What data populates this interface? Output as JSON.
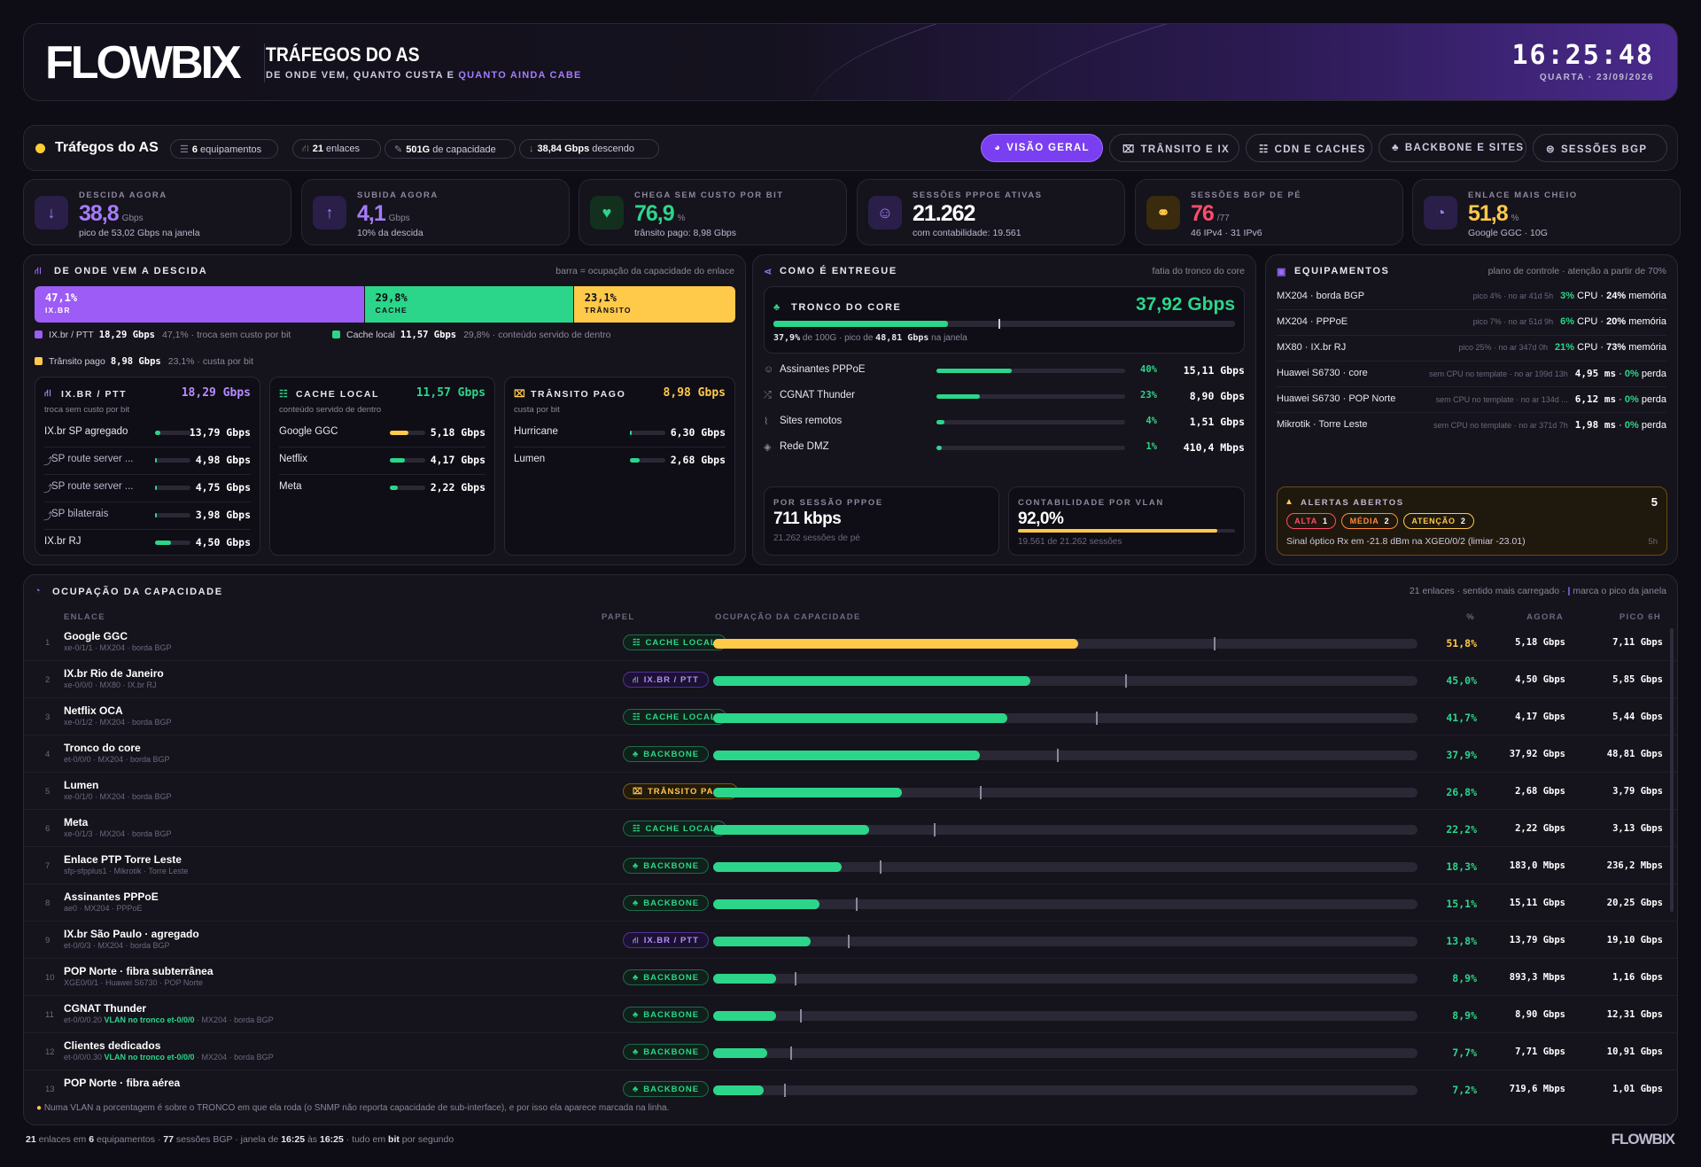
{
  "header": {
    "logo": "FLOWBIX",
    "title": "TRÁFEGOS DO AS",
    "subtitle_a": "DE ONDE VEM, QUANTO CUSTA E ",
    "subtitle_b": "QUANTO AINDA CABE",
    "time": "16:25:48",
    "date": "QUARTA · 23/09/2026"
  },
  "nav": {
    "title": "Tráfegos do AS",
    "chips": [
      {
        "n": "6",
        "t": " equipamentos",
        "icon": "list-icon"
      },
      {
        "n": "21",
        "t": " enlaces",
        "icon": "network-icon"
      },
      {
        "n": "501G",
        "t": " de capacidade",
        "icon": "gauge-icon"
      },
      {
        "n": "38,84 Gbps",
        "t": " descendo",
        "icon": "arrow-down-icon"
      }
    ],
    "tabs": [
      "VISÃO GERAL",
      "TRÂNSITO E IX",
      "CDN E CACHES",
      "BACKBONE E SITES",
      "SESSÕES BGP"
    ]
  },
  "kpis": [
    {
      "label": "DESCIDA AGORA",
      "value": "38,8",
      "unit": "Gbps",
      "sub": "pico de 53,02 Gbps na janela",
      "icon": "arrow-down-icon",
      "color": "#a57bff"
    },
    {
      "label": "SUBIDA AGORA",
      "value": "4,1",
      "unit": "Gbps",
      "sub": "10% da descida",
      "icon": "arrow-up-icon",
      "color": "#a57bff"
    },
    {
      "label": "CHEGA SEM CUSTO POR BIT",
      "value": "76,9",
      "unit": "%",
      "sub": "trânsito pago: 8,98 Gbps",
      "icon": "piggy-icon",
      "color": "#2bd68a"
    },
    {
      "label": "SESSÕES PPPOE ATIVAS",
      "value": "21.262",
      "unit": "",
      "sub": "com contabilidade: 19.561",
      "icon": "users-icon",
      "color": "#ffffff"
    },
    {
      "label": "SESSÕES BGP DE PÉ",
      "value": "76",
      "unit": "/77",
      "sub": "46 IPv4 · 31 IPv6",
      "icon": "handshake-icon",
      "color": "#ff4d6d"
    },
    {
      "label": "ENLACE MAIS CHEIO",
      "value": "51,8",
      "unit": "%",
      "sub": "Google GGC · 10G",
      "icon": "gauge-icon",
      "color": "#ffc94a"
    }
  ],
  "origem": {
    "title": "DE ONDE VEM A DESCIDA",
    "note": "barra = ocupação da capacidade do enlace",
    "split": [
      {
        "pct": "47,1%",
        "name": "IX.BR",
        "frac": 0.471,
        "color": "#9d5cf5"
      },
      {
        "pct": "29,8%",
        "name": "CACHE",
        "frac": 0.298,
        "color": "#2bd68a"
      },
      {
        "pct": "23,1%",
        "name": "TRÂNSITO",
        "frac": 0.231,
        "color": "#ffc94a"
      }
    ],
    "legend": [
      {
        "name": "IX.br / PTT",
        "val": "18,29 Gbps",
        "pct": "47,1%",
        "desc": "troca sem custo por bit",
        "color": "#9d5cf5"
      },
      {
        "name": "Cache local",
        "val": "11,57 Gbps",
        "pct": "29,8%",
        "desc": "conteúdo servido de dentro",
        "color": "#2bd68a"
      },
      {
        "name": "Trânsito pago",
        "val": "8,98 Gbps",
        "pct": "23,1%",
        "desc": "custa por bit",
        "color": "#ffc94a"
      }
    ],
    "cols": [
      {
        "title": "IX.BR / PTT",
        "total": "18,29 Gbps",
        "desc": "troca sem custo por bit",
        "color": "#b58cff",
        "icon": "network-icon",
        "rows": [
          {
            "n": "IX.br SP agregado",
            "v": "13,79 Gbps",
            "f": 0.14,
            "sub": false
          },
          {
            "n": "SP route server ...",
            "v": "4,98 Gbps",
            "f": 0.02,
            "sub": true
          },
          {
            "n": "SP route server ...",
            "v": "4,75 Gbps",
            "f": 0.02,
            "sub": true
          },
          {
            "n": "SP bilaterais",
            "v": "3,98 Gbps",
            "f": 0.02,
            "sub": true
          },
          {
            "n": "IX.br RJ",
            "v": "4,50 Gbps",
            "f": 0.45,
            "sub": false
          }
        ]
      },
      {
        "title": "CACHE LOCAL",
        "total": "11,57 Gbps",
        "desc": "conteúdo servido de dentro",
        "color": "#2bd68a",
        "icon": "cache-icon",
        "rows": [
          {
            "n": "Google GGC",
            "v": "5,18 Gbps",
            "f": 0.52,
            "sub": false,
            "c": "#ffc94a"
          },
          {
            "n": "Netflix",
            "v": "4,17 Gbps",
            "f": 0.42,
            "sub": false
          },
          {
            "n": "Meta",
            "v": "2,22 Gbps",
            "f": 0.22,
            "sub": false
          }
        ]
      },
      {
        "title": "TRÂNSITO PAGO",
        "total": "8,98 Gbps",
        "desc": "custa por bit",
        "color": "#ffc94a",
        "icon": "ticket-icon",
        "rows": [
          {
            "n": "Hurricane",
            "v": "6,30 Gbps",
            "f": 0.03,
            "sub": false
          },
          {
            "n": "Lumen",
            "v": "2,68 Gbps",
            "f": 0.27,
            "sub": false
          }
        ]
      }
    ]
  },
  "entrega": {
    "title": "COMO É ENTREGUE",
    "note": "fatia do tronco do core",
    "tronco_label": "TRONCO DO CORE",
    "tronco_val": "37,92 Gbps",
    "tronco_frac": 0.379,
    "tronco_peak": 0.488,
    "tronco_sub_a": "37,9%",
    "tronco_sub_b": " de 100G · pico de ",
    "tronco_sub_c": "48,81 Gbps",
    "tronco_sub_d": " na janela",
    "rows": [
      {
        "n": "Assinantes PPPoE",
        "p": "40%",
        "v": "15,11 Gbps",
        "f": 0.4,
        "icon": "users-icon"
      },
      {
        "n": "CGNAT Thunder",
        "p": "23%",
        "v": "8,90 Gbps",
        "f": 0.23,
        "icon": "shuffle-icon"
      },
      {
        "n": "Sites remotos",
        "p": "4%",
        "v": "1,51 Gbps",
        "f": 0.04,
        "icon": "signal-icon"
      },
      {
        "n": "Rede DMZ",
        "p": "1%",
        "v": "410,4 Mbps",
        "f": 0.01,
        "icon": "shield-icon"
      }
    ],
    "c1_label": "POR SESSÃO PPPOE",
    "c1_val": "711 kbps",
    "c1_sub": "21.262 sessões de pé",
    "c2_label": "CONTABILIDADE POR VLAN",
    "c2_val": "92,0%",
    "c2_sub": "19.561 de 21.262 sessões",
    "c2_frac": 0.92
  },
  "equip": {
    "title": "EQUIPAMENTOS",
    "note": "plano de controle · atenção a partir de 70%",
    "rows": [
      {
        "n": "MX204 · borda BGP",
        "info": "pico 4% · no ar 41d 5h",
        "a": "3%",
        "ak": " CPU · ",
        "b": "24%",
        "bk": " memória"
      },
      {
        "n": "MX204 · PPPoE",
        "info": "pico 7% · no ar 51d 9h",
        "a": "6%",
        "ak": " CPU · ",
        "b": "20%",
        "bk": " memória"
      },
      {
        "n": "MX80 · IX.br RJ",
        "info": "pico 25% · no ar 347d 0h",
        "a": "21%",
        "ak": " CPU · ",
        "b": "73%",
        "bk": " memória"
      },
      {
        "n": "Huawei S6730 · core",
        "info": "sem CPU no template · no ar 199d 13h",
        "a": "4,95 ms",
        "ak": " · ",
        "b": "0%",
        "bk": " perda"
      },
      {
        "n": "Huawei S6730 · POP Norte",
        "info": "sem CPU no template · no ar 134d ...",
        "a": "6,12 ms",
        "ak": " · ",
        "b": "0%",
        "bk": " perda"
      },
      {
        "n": "Mikrotik · Torre Leste",
        "info": "sem CPU no template · no ar 371d 7h",
        "a": "1,98 ms",
        "ak": " · ",
        "b": "0%",
        "bk": " perda"
      }
    ],
    "alert_title": "ALERTAS ABERTOS",
    "alert_count": "5",
    "alert_tags": [
      {
        "t": "ALTA",
        "n": "1",
        "c": "#ff4d6d"
      },
      {
        "t": "MÉDIA",
        "n": "2",
        "c": "#ff8a3d"
      },
      {
        "t": "ATENÇÃO",
        "n": "2",
        "c": "#ffc94a"
      }
    ],
    "alert_msg": "Sinal óptico Rx em -21.8 dBm na XGE0/0/2 (limiar -23.01)",
    "alert_age": "5h"
  },
  "ocup": {
    "title": "OCUPAÇÃO DA CAPACIDADE",
    "note_a": "21 enlaces · sentido mais carregado · ",
    "note_b": "marca o pico da janela",
    "cols": [
      "ENLACE",
      "PAPEL",
      "OCUPAÇÃO DA CAPACIDADE",
      "%",
      "AGORA",
      "PICO 6H"
    ],
    "rows": [
      {
        "i": "1",
        "n": "Google GGC",
        "s": "xe-0/1/1 · MX204 · borda BGP",
        "r": "CACHE LOCAL",
        "rc": "b-cache",
        "p": "51,8%",
        "f": 0.518,
        "pk": 0.711,
        "a": "5,18 Gbps",
        "m": "7,11 Gbps",
        "c": "#ffc94a"
      },
      {
        "i": "2",
        "n": "IX.br Rio de Janeiro",
        "s": "xe-0/0/0 · MX80 · IX.br RJ",
        "r": "IX.BR / PTT",
        "rc": "b-ix",
        "p": "45,0%",
        "f": 0.45,
        "pk": 0.585,
        "a": "4,50 Gbps",
        "m": "5,85 Gbps",
        "c": "#2bd68a"
      },
      {
        "i": "3",
        "n": "Netflix OCA",
        "s": "xe-0/1/2 · MX204 · borda BGP",
        "r": "CACHE LOCAL",
        "rc": "b-cache",
        "p": "41,7%",
        "f": 0.417,
        "pk": 0.544,
        "a": "4,17 Gbps",
        "m": "5,44 Gbps",
        "c": "#2bd68a"
      },
      {
        "i": "4",
        "n": "Tronco do core",
        "s": "et-0/0/0 · MX204 · borda BGP",
        "r": "BACKBONE",
        "rc": "b-back",
        "p": "37,9%",
        "f": 0.379,
        "pk": 0.488,
        "a": "37,92 Gbps",
        "m": "48,81 Gbps",
        "c": "#2bd68a"
      },
      {
        "i": "5",
        "n": "Lumen",
        "s": "xe-0/1/0 · MX204 · borda BGP",
        "r": "TRÂNSITO PAGO",
        "rc": "b-tp",
        "p": "26,8%",
        "f": 0.268,
        "pk": 0.379,
        "a": "2,68 Gbps",
        "m": "3,79 Gbps",
        "c": "#2bd68a"
      },
      {
        "i": "6",
        "n": "Meta",
        "s": "xe-0/1/3 · MX204 · borda BGP",
        "r": "CACHE LOCAL",
        "rc": "b-cache",
        "p": "22,2%",
        "f": 0.222,
        "pk": 0.313,
        "a": "2,22 Gbps",
        "m": "3,13 Gbps",
        "c": "#2bd68a"
      },
      {
        "i": "7",
        "n": "Enlace PTP Torre Leste",
        "s": "sfp-sfpplus1 · Mikrotik · Torre Leste",
        "r": "BACKBONE",
        "rc": "b-back",
        "p": "18,3%",
        "f": 0.183,
        "pk": 0.236,
        "a": "183,0 Mbps",
        "m": "236,2 Mbps",
        "c": "#2bd68a"
      },
      {
        "i": "8",
        "n": "Assinantes PPPoE",
        "s": "ae0 · MX204 · PPPoE",
        "r": "BACKBONE",
        "rc": "b-back",
        "p": "15,1%",
        "f": 0.151,
        "pk": 0.203,
        "a": "15,11 Gbps",
        "m": "20,25 Gbps",
        "c": "#2bd68a"
      },
      {
        "i": "9",
        "n": "IX.br São Paulo · agregado",
        "s": "et-0/0/3 · MX204 · borda BGP",
        "r": "IX.BR / PTT",
        "rc": "b-ix",
        "p": "13,8%",
        "f": 0.138,
        "pk": 0.191,
        "a": "13,79 Gbps",
        "m": "19,10 Gbps",
        "c": "#2bd68a"
      },
      {
        "i": "10",
        "n": "POP Norte · fibra subterrânea",
        "s": "XGE0/0/1 · Huawei S6730 · POP Norte",
        "r": "BACKBONE",
        "rc": "b-back",
        "p": "8,9%",
        "f": 0.089,
        "pk": 0.116,
        "a": "893,3 Mbps",
        "m": "1,16 Gbps",
        "c": "#2bd68a"
      },
      {
        "i": "11",
        "n": "CGNAT Thunder",
        "s": "et-0/0/0.20 ",
        "sv": "VLAN no tronco et-0/0/0",
        "s2": " · MX204 · borda BGP",
        "r": "BACKBONE",
        "rc": "b-back",
        "p": "8,9%",
        "f": 0.089,
        "pk": 0.123,
        "a": "8,90 Gbps",
        "m": "12,31 Gbps",
        "c": "#2bd68a"
      },
      {
        "i": "12",
        "n": "Clientes dedicados",
        "s": "et-0/0/0.30 ",
        "sv": "VLAN no tronco et-0/0/0",
        "s2": " · MX204 · borda BGP",
        "r": "BACKBONE",
        "rc": "b-back",
        "p": "7,7%",
        "f": 0.077,
        "pk": 0.109,
        "a": "7,71 Gbps",
        "m": "10,91 Gbps",
        "c": "#2bd68a"
      },
      {
        "i": "13",
        "n": "POP Norte · fibra aérea",
        "s": "",
        "r": "BACKBONE",
        "rc": "b-back",
        "p": "7,2%",
        "f": 0.072,
        "pk": 0.101,
        "a": "719,6 Mbps",
        "m": "1,01 Gbps",
        "c": "#2bd68a"
      }
    ],
    "footnote": "Numa VLAN a porcentagem é sobre o TRONCO em que ela roda (o SNMP não reporta capacidade de sub-interface), e por isso ela aparece marcada na linha."
  },
  "footer": {
    "a": "21",
    "a2": " enlaces em ",
    "b": "6",
    "b2": " equipamentos · ",
    "c": "77",
    "c2": " sessões BGP · janela de ",
    "d": "16:25",
    "d2": " às ",
    "e": "16:25",
    "e2": " · tudo em ",
    "f": "bit",
    "f2": " por segundo",
    "logo": "FLOWBIX"
  }
}
